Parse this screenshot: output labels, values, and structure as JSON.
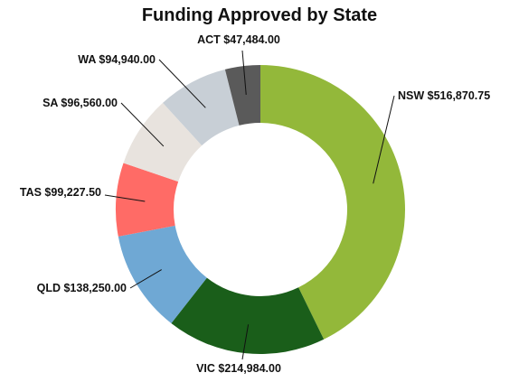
{
  "chart_data": {
    "type": "pie",
    "title": "Funding Approved by State",
    "categories": [
      "NSW",
      "VIC",
      "QLD",
      "TAS",
      "SA",
      "WA",
      "ACT"
    ],
    "values": [
      516870.75,
      214984.0,
      138250.0,
      99227.5,
      96560.0,
      94940.0,
      47484.0
    ],
    "labels": [
      "NSW $516,870.75",
      "VIC $214,984.00",
      "QLD $138,250.00",
      "TAS $99,227.50",
      "SA $96,560.00",
      "WA $94,940.00",
      "ACT $47,484.00"
    ],
    "colors": [
      "#93b83a",
      "#1a5e1a",
      "#6fa8d4",
      "#ff6b66",
      "#e8e3de",
      "#c8cfd6",
      "#5a5a5a"
    ],
    "donut": true
  }
}
